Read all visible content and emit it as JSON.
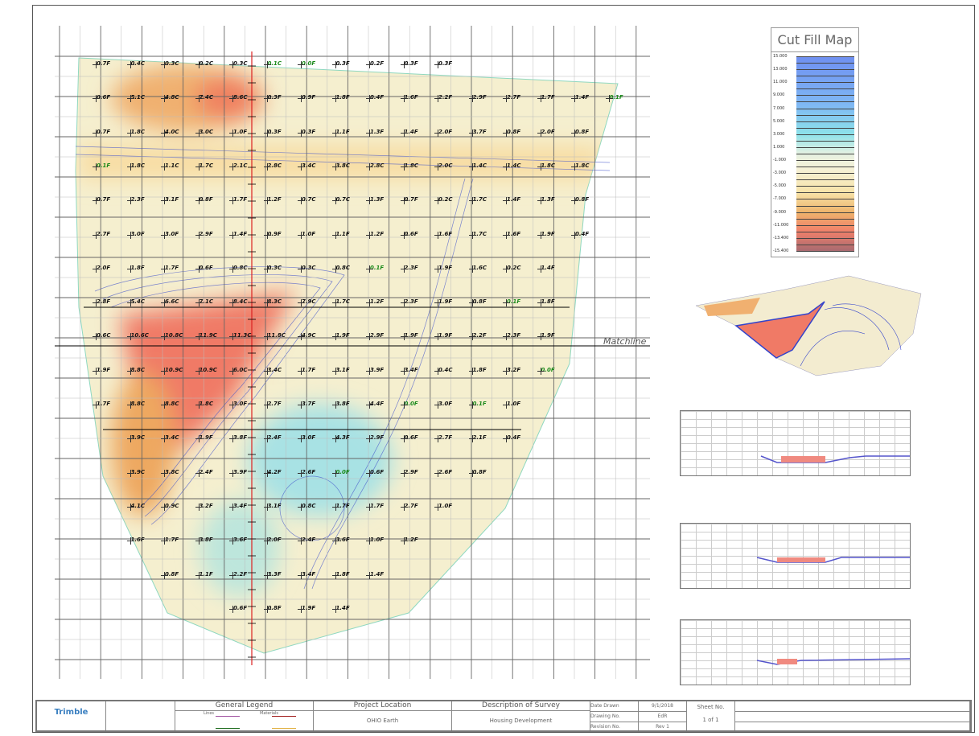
{
  "legend": {
    "title": "Cut Fill Map",
    "values": [
      "15.000",
      "13.000",
      "11.000",
      "9.000",
      "7.000",
      "5.000",
      "3.000",
      "1.000",
      "-1.000",
      "-3.000",
      "-5.000",
      "-7.000",
      "-9.000",
      "-11.000",
      "-13.400",
      "-15.400"
    ]
  },
  "map": {
    "matchline": "Matchline",
    "colors": {
      "cut": "#f07a66",
      "fill": "#8fd8e6",
      "neutral": "#f5efcf",
      "contour": "#4455cc",
      "centerline": "#dd2222",
      "near_zero": "#1a8a1a"
    },
    "rows": [
      {
        "start": 0,
        "values": [
          "0.7F",
          "0.4C",
          "0.3C",
          "0.2C",
          "0.3C",
          "0.1C",
          "0.0F",
          "0.3F",
          "0.2F",
          "0.3F",
          "0.3F"
        ]
      },
      {
        "start": 0,
        "values": [
          "0.6F",
          "5.1C",
          "4.8C",
          "7.4C",
          "8.6C",
          "0.3F",
          "0.9F",
          "1.8F",
          "0.4F",
          "1.6F",
          "2.2F",
          "2.9F",
          "2.7F",
          "1.7F",
          "1.4F",
          "0.1F"
        ]
      },
      {
        "start": 0,
        "values": [
          "0.7F",
          "1.8C",
          "4.0C",
          "3.0C",
          "1.0F",
          "0.3F",
          "0.3F",
          "1.1F",
          "1.3F",
          "1.4F",
          "2.0F",
          "3.7F",
          "0.8F",
          "2.0F",
          "0.8F"
        ]
      },
      {
        "start": 0,
        "values": [
          "0.1F",
          "1.8C",
          "1.1C",
          "1.7C",
          "2.1C",
          "2.8C",
          "3.4C",
          "3.8C",
          "2.8C",
          "1.8C",
          "2.0C",
          "1.4C",
          "1.4C",
          "1.8C",
          "1.8C"
        ]
      },
      {
        "start": 0,
        "values": [
          "0.7F",
          "2.3F",
          "3.1F",
          "0.8F",
          "1.7F",
          "1.2F",
          "0.7C",
          "0.7C",
          "1.3F",
          "0.7F",
          "0.2C",
          "1.7C",
          "1.4F",
          "1.3F",
          "0.8F"
        ]
      },
      {
        "start": 0,
        "values": [
          "2.7F",
          "3.0F",
          "3.0F",
          "2.9F",
          "1.4F",
          "0.9F",
          "1.0F",
          "1.1F",
          "1.2F",
          "0.6F",
          "1.6F",
          "1.7C",
          "1.6F",
          "1.9F",
          "0.4F"
        ]
      },
      {
        "start": 0,
        "values": [
          "2.0F",
          "1.8F",
          "1.7F",
          "0.6F",
          "0.8C",
          "0.3C",
          "0.3C",
          "0.8C",
          "0.1F",
          "2.3F",
          "1.9F",
          "1.6C",
          "0.2C",
          "1.4F"
        ]
      },
      {
        "start": 0,
        "values": [
          "2.8F",
          "5.4C",
          "6.6C",
          "7.1C",
          "8.4C",
          "8.3C",
          "7.9C",
          "1.7C",
          "1.2F",
          "2.3F",
          "1.9F",
          "0.8F",
          "0.1F",
          "1.8F"
        ]
      },
      {
        "start": 0,
        "values": [
          "0.6C",
          "10.6C",
          "10.8C",
          "11.9C",
          "11.3C",
          "11.8C",
          "4.9C",
          "1.9F",
          "2.9F",
          "1.9F",
          "1.9F",
          "2.2F",
          "2.3F",
          "1.9F"
        ]
      },
      {
        "start": 0,
        "values": [
          "1.9F",
          "8.8C",
          "10.9C",
          "10.9C",
          "6.0C",
          "3.4C",
          "1.7F",
          "3.1F",
          "3.9F",
          "3.4F",
          "0.4C",
          "1.8F",
          "3.2F",
          "0.0F"
        ]
      },
      {
        "start": 0,
        "values": [
          "1.7F",
          "8.8C",
          "8.8C",
          "1.8C",
          "3.0F",
          "2.7F",
          "3.7F",
          "3.8F",
          "4.4F",
          "0.0F",
          "3.0F",
          "0.1F",
          "1.0F"
        ]
      },
      {
        "start": 1,
        "values": [
          "3.9C",
          "3.4C",
          "1.9F",
          "3.8F",
          "2.4F",
          "3.0F",
          "4.3F",
          "2.9F",
          "0.6F",
          "2.7F",
          "2.1F",
          "0.4F"
        ]
      },
      {
        "start": 1,
        "values": [
          "3.9C",
          "3.8C",
          "2.4F",
          "3.9F",
          "4.2F",
          "2.6F",
          "0.0F",
          "0.6F",
          "2.9F",
          "2.6F",
          "0.8F"
        ]
      },
      {
        "start": 1,
        "values": [
          "4.1C",
          "0.9C",
          "3.2F",
          "3.4F",
          "3.1F",
          "0.8C",
          "1.7F",
          "1.7F",
          "2.7F",
          "1.0F"
        ]
      },
      {
        "start": 1,
        "values": [
          "1.6F",
          "1.7F",
          "3.8F",
          "3.6F",
          "2.0F",
          "2.4F",
          "3.6F",
          "1.0F",
          "1.2F"
        ]
      },
      {
        "start": 2,
        "values": [
          "0.8F",
          "1.1F",
          "2.2F",
          "3.3F",
          "3.4F",
          "1.8F",
          "1.4F"
        ]
      },
      {
        "start": 4,
        "values": [
          "0.6F",
          "0.8F",
          "1.9F",
          "1.4F"
        ]
      }
    ]
  },
  "title_block": {
    "company": "Trimble",
    "general_legend": "General Legend",
    "lines": "Lines",
    "materials": "Materials",
    "project_location": "Project Location",
    "location": "OHIO Earth",
    "description_of_survey": "Description of Survey",
    "description": "Housing Development",
    "date_drawn_label": "Date Drawn",
    "date_drawn": "9/1/2018",
    "drawing_no_label": "Drawing No.",
    "drawing_no": "EdR",
    "revision_no_label": "Revision No.",
    "revision_no": "Rev 1",
    "sheet_no_label": "Sheet No.",
    "sheet_no": "1 of 1"
  }
}
